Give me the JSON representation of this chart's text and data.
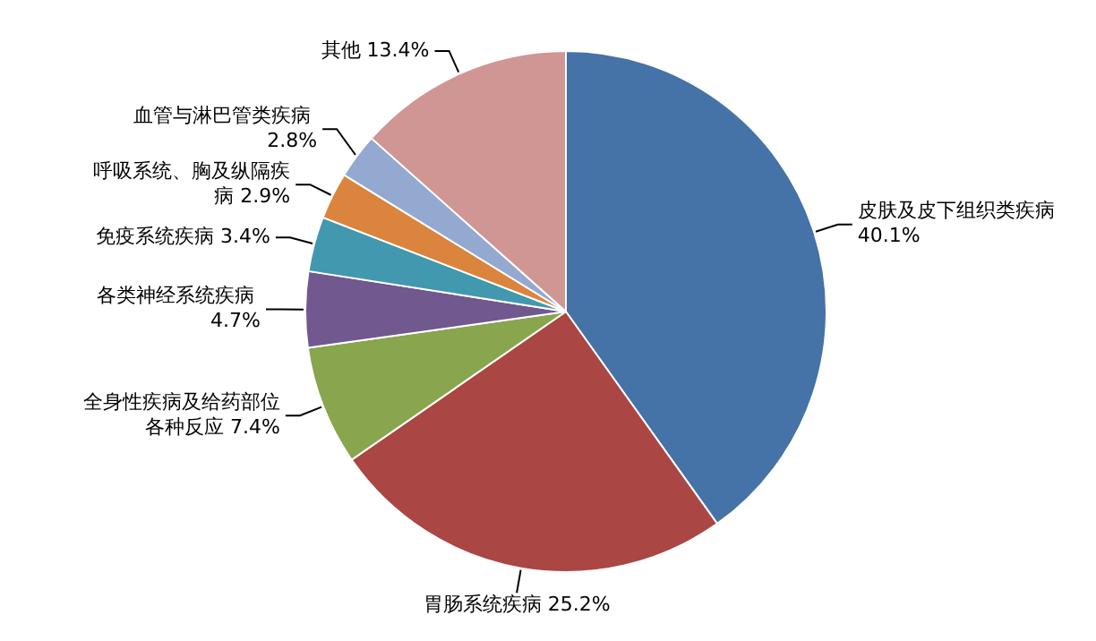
{
  "chart_data": {
    "type": "pie",
    "categories": [
      "皮肤及皮下组织类疾病",
      "胃肠系统疾病",
      "全身性疾病及给药部位各种反应",
      "各类神经系统疾病",
      "免疫系统疾病",
      "呼吸系统、胸及纵隔疾病",
      "血管与淋巴管类疾病",
      "其他"
    ],
    "values": [
      40.1,
      25.2,
      7.4,
      4.7,
      3.4,
      2.9,
      2.8,
      13.4
    ],
    "value_labels": [
      "40.1%",
      "25.2%",
      "7.4%",
      "4.7%",
      "3.4%",
      "2.9%",
      "2.8%",
      "13.4%"
    ],
    "colors": [
      "#4572a7",
      "#aa4643",
      "#89a54e",
      "#71588f",
      "#4198af",
      "#db843d",
      "#93a9cf",
      "#d09694"
    ],
    "legend": false
  }
}
